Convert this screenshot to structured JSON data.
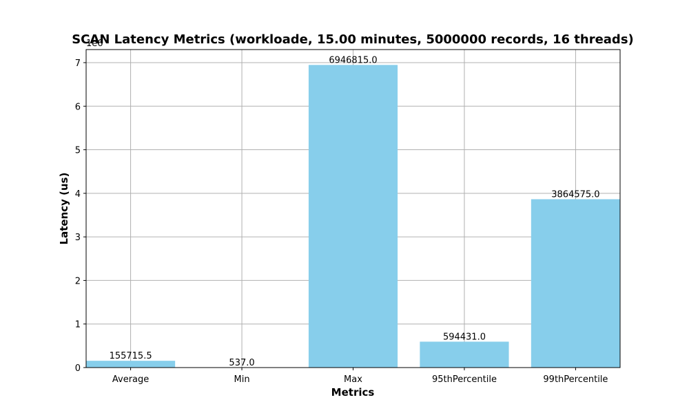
{
  "chart_data": {
    "type": "bar",
    "title": "SCAN Latency Metrics (workloade, 15.00 minutes, 5000000 records, 16 threads)",
    "xlabel": "Metrics",
    "ylabel": "Latency (us)",
    "scale_label": "1e6",
    "categories": [
      "Average",
      "Min",
      "Max",
      "95thPercentile",
      "99thPercentile"
    ],
    "values": [
      155715.5,
      537.0,
      6946815.0,
      594431.0,
      3864575.0
    ],
    "value_labels": [
      "155715.5",
      "537.0",
      "6946815.0",
      "594431.0",
      "3864575.0"
    ],
    "ylim": [
      0,
      7300000
    ],
    "y_ticks": [
      0,
      1000000,
      2000000,
      3000000,
      4000000,
      5000000,
      6000000,
      7000000
    ],
    "y_tick_labels": [
      "0",
      "1",
      "2",
      "3",
      "4",
      "5",
      "6",
      "7"
    ],
    "bar_color": "#87ceeb",
    "grid": true
  }
}
